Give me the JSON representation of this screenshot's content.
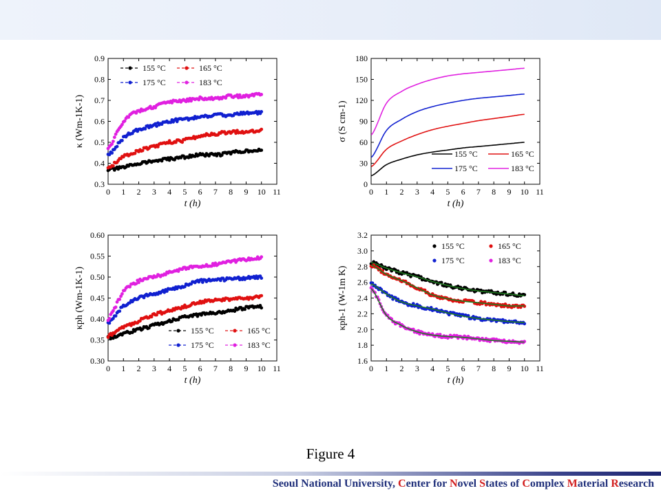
{
  "caption": "Figure 4",
  "footer": {
    "parts": [
      {
        "t": "Seoul National University, ",
        "red": false
      },
      {
        "t": "C",
        "red": true
      },
      {
        "t": "enter for ",
        "red": false
      },
      {
        "t": "N",
        "red": true
      },
      {
        "t": "ovel ",
        "red": false
      },
      {
        "t": "S",
        "red": true
      },
      {
        "t": "tates of ",
        "red": false
      },
      {
        "t": "C",
        "red": true
      },
      {
        "t": "omplex ",
        "red": false
      },
      {
        "t": "M",
        "red": true
      },
      {
        "t": "aterial ",
        "red": false
      },
      {
        "t": "R",
        "red": true
      },
      {
        "t": "esearch",
        "red": false
      }
    ]
  },
  "colors": {
    "155": "#000000",
    "165": "#e01010",
    "175": "#1020d0",
    "183": "#e020e0",
    "fit": "#1e7a1e"
  },
  "chart_data": [
    {
      "type": "scatter",
      "ylabel": "κ (Wm-1K-1)",
      "xlabel": "t (h)",
      "xlim": [
        0,
        11
      ],
      "ylim": [
        0.3,
        0.9
      ],
      "xticks": [
        "0",
        "1",
        "2",
        "3",
        "4",
        "5",
        "6",
        "7",
        "8",
        "9",
        "10",
        "11"
      ],
      "yticks": [
        "0.3",
        "0.4",
        "0.5",
        "0.6",
        "0.7",
        "0.8",
        "0.9"
      ],
      "legend_style": "dot-line",
      "legend_position": "top-left",
      "series": [
        {
          "name": "155 °C",
          "x": [
            0,
            1,
            2,
            3,
            4,
            5,
            6,
            7,
            8,
            9,
            10
          ],
          "y": [
            0.37,
            0.38,
            0.4,
            0.41,
            0.42,
            0.43,
            0.44,
            0.44,
            0.45,
            0.46,
            0.46
          ]
        },
        {
          "name": "165 °C",
          "x": [
            0,
            1,
            2,
            3,
            4,
            5,
            6,
            7,
            8,
            9,
            10
          ],
          "y": [
            0.38,
            0.43,
            0.46,
            0.48,
            0.5,
            0.51,
            0.53,
            0.54,
            0.55,
            0.55,
            0.56
          ]
        },
        {
          "name": "175 °C",
          "x": [
            0,
            1,
            2,
            3,
            4,
            5,
            6,
            7,
            8,
            9,
            10
          ],
          "y": [
            0.44,
            0.52,
            0.56,
            0.58,
            0.6,
            0.61,
            0.62,
            0.63,
            0.63,
            0.64,
            0.64
          ]
        },
        {
          "name": "183 °C",
          "x": [
            0,
            1,
            2,
            3,
            4,
            5,
            6,
            7,
            8,
            9,
            10
          ],
          "y": [
            0.47,
            0.6,
            0.65,
            0.67,
            0.69,
            0.7,
            0.71,
            0.71,
            0.72,
            0.72,
            0.73
          ]
        }
      ]
    },
    {
      "type": "line",
      "ylabel": "σ (S cm-1)",
      "xlabel": "t (h)",
      "xlim": [
        0,
        11
      ],
      "ylim": [
        0,
        180
      ],
      "xticks": [
        "0",
        "1",
        "2",
        "3",
        "4",
        "5",
        "6",
        "7",
        "8",
        "9",
        "10",
        "11"
      ],
      "yticks": [
        "0",
        "30",
        "60",
        "90",
        "120",
        "150",
        "180"
      ],
      "legend_style": "line",
      "legend_position": "bottom-right",
      "series": [
        {
          "name": "155 °C",
          "x": [
            0,
            1,
            2,
            3,
            4,
            5,
            6,
            7,
            8,
            9,
            10
          ],
          "y": [
            12,
            28,
            36,
            42,
            46,
            49,
            52,
            54,
            56,
            58,
            60
          ]
        },
        {
          "name": "165 °C",
          "x": [
            0,
            1,
            2,
            3,
            4,
            5,
            6,
            7,
            8,
            9,
            10
          ],
          "y": [
            25,
            50,
            62,
            71,
            78,
            83,
            87,
            91,
            94,
            97,
            100
          ]
        },
        {
          "name": "175 °C",
          "x": [
            0,
            1,
            2,
            3,
            4,
            5,
            6,
            7,
            8,
            9,
            10
          ],
          "y": [
            38,
            77,
            93,
            104,
            111,
            116,
            120,
            123,
            125,
            127,
            129
          ]
        },
        {
          "name": "183 °C",
          "x": [
            0,
            1,
            2,
            3,
            4,
            5,
            6,
            7,
            8,
            9,
            10
          ],
          "y": [
            70,
            116,
            133,
            143,
            150,
            155,
            158,
            160,
            162,
            164,
            166
          ]
        }
      ]
    },
    {
      "type": "scatter",
      "ylabel": "κph (Wm-1K-1)",
      "xlabel": "t (h)",
      "xlim": [
        0,
        11
      ],
      "ylim": [
        0.3,
        0.6
      ],
      "xticks": [
        "0",
        "1",
        "2",
        "3",
        "4",
        "5",
        "6",
        "7",
        "8",
        "9",
        "10",
        "11"
      ],
      "yticks": [
        "0.30",
        "0.35",
        "0.40",
        "0.45",
        "0.50",
        "0.55",
        "0.60"
      ],
      "legend_style": "dot-line",
      "legend_position": "bottom-right",
      "series": [
        {
          "name": "155 °C",
          "x": [
            0,
            1,
            2,
            3,
            4,
            5,
            6,
            7,
            8,
            9,
            10
          ],
          "y": [
            0.355,
            0.365,
            0.375,
            0.385,
            0.395,
            0.405,
            0.41,
            0.415,
            0.42,
            0.427,
            0.43
          ]
        },
        {
          "name": "165 °C",
          "x": [
            0,
            1,
            2,
            3,
            4,
            5,
            6,
            7,
            8,
            9,
            10
          ],
          "y": [
            0.36,
            0.38,
            0.395,
            0.41,
            0.42,
            0.43,
            0.44,
            0.445,
            0.448,
            0.45,
            0.452
          ]
        },
        {
          "name": "175 °C",
          "x": [
            0,
            1,
            2,
            3,
            4,
            5,
            6,
            7,
            8,
            9,
            10
          ],
          "y": [
            0.39,
            0.43,
            0.45,
            0.46,
            0.47,
            0.48,
            0.49,
            0.493,
            0.495,
            0.498,
            0.5
          ]
        },
        {
          "name": "183 °C",
          "x": [
            0,
            1,
            2,
            3,
            4,
            5,
            6,
            7,
            8,
            9,
            10
          ],
          "y": [
            0.4,
            0.465,
            0.49,
            0.5,
            0.51,
            0.52,
            0.525,
            0.53,
            0.537,
            0.542,
            0.545
          ]
        }
      ]
    },
    {
      "type": "scatter",
      "ylabel": "κph-1 (W-1m K)",
      "xlabel": "t (h)",
      "xlim": [
        0,
        11
      ],
      "ylim": [
        1.6,
        3.2
      ],
      "xticks": [
        "0",
        "1",
        "2",
        "3",
        "4",
        "5",
        "6",
        "7",
        "8",
        "9",
        "10",
        "11"
      ],
      "yticks": [
        "1.6",
        "1.8",
        "2.0",
        "2.2",
        "2.4",
        "2.6",
        "2.8",
        "3.0",
        "3.2"
      ],
      "legend_style": "dot",
      "legend_position": "top-right",
      "fit_lines": true,
      "series": [
        {
          "name": "155 °C",
          "x": [
            0,
            1,
            2,
            3,
            4,
            5,
            6,
            7,
            8,
            9,
            10
          ],
          "y": [
            2.85,
            2.78,
            2.72,
            2.67,
            2.61,
            2.56,
            2.52,
            2.49,
            2.47,
            2.45,
            2.43
          ]
        },
        {
          "name": "165 °C",
          "x": [
            0,
            1,
            2,
            3,
            4,
            5,
            6,
            7,
            8,
            9,
            10
          ],
          "y": [
            2.82,
            2.7,
            2.62,
            2.53,
            2.44,
            2.39,
            2.36,
            2.34,
            2.32,
            2.3,
            2.3
          ]
        },
        {
          "name": "175 °C",
          "x": [
            0,
            1,
            2,
            3,
            4,
            5,
            6,
            7,
            8,
            9,
            10
          ],
          "y": [
            2.58,
            2.45,
            2.35,
            2.3,
            2.26,
            2.21,
            2.17,
            2.14,
            2.12,
            2.1,
            2.09
          ]
        },
        {
          "name": "183 °C",
          "x": [
            0,
            1,
            2,
            3,
            4,
            5,
            6,
            7,
            8,
            9,
            10
          ],
          "y": [
            2.52,
            2.18,
            2.05,
            1.97,
            1.93,
            1.91,
            1.9,
            1.88,
            1.86,
            1.85,
            1.84
          ]
        }
      ]
    }
  ]
}
